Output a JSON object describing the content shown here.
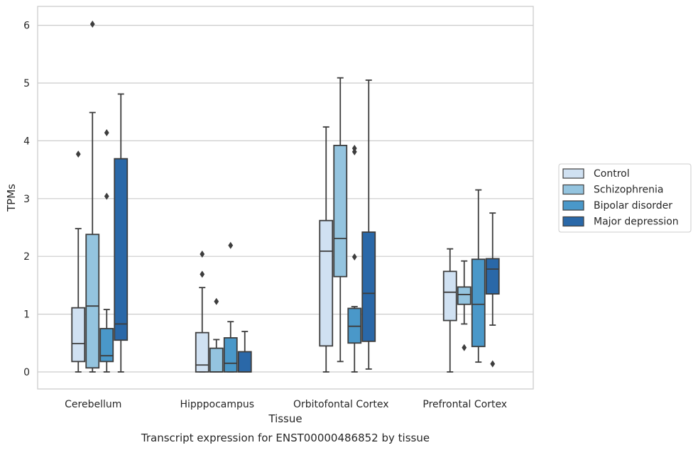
{
  "chart_data": {
    "type": "box",
    "xlabel": "Tissue",
    "ylabel": "TPMs",
    "caption": "Transcript expression for ENST00000486852 by tissue",
    "ylim": [
      -0.3,
      6.35
    ],
    "yticks": [
      0,
      1,
      2,
      3,
      4,
      5,
      6
    ],
    "grid": "horizontal",
    "legend_placement": "right",
    "categories": [
      "Cerebellum",
      "Hipppocampus",
      "Orbitofontal Cortex",
      "Prefrontal Cortex"
    ],
    "series": [
      {
        "name": "Control",
        "color": "#d0e1f2",
        "boxes": [
          {
            "min": 0.0,
            "q1": 0.18,
            "median": 0.49,
            "q3": 1.11,
            "max": 2.48,
            "outliers": [
              3.77
            ]
          },
          {
            "min": 0.0,
            "q1": 0.0,
            "median": 0.12,
            "q3": 0.68,
            "max": 1.46,
            "outliers": [
              1.69,
              2.04
            ]
          },
          {
            "min": 0.0,
            "q1": 0.45,
            "median": 2.09,
            "q3": 2.62,
            "max": 4.24,
            "outliers": []
          },
          {
            "min": 0.0,
            "q1": 0.89,
            "median": 1.38,
            "q3": 1.74,
            "max": 2.13,
            "outliers": []
          }
        ]
      },
      {
        "name": "Schizophrenia",
        "color": "#94c4df",
        "boxes": [
          {
            "min": 0.0,
            "q1": 0.07,
            "median": 1.14,
            "q3": 2.38,
            "max": 4.49,
            "outliers": [
              6.02
            ]
          },
          {
            "min": 0.0,
            "q1": 0.0,
            "median": 0.0,
            "q3": 0.41,
            "max": 0.56,
            "outliers": [
              1.22
            ]
          },
          {
            "min": 0.18,
            "q1": 1.65,
            "median": 2.31,
            "q3": 3.92,
            "max": 5.09,
            "outliers": []
          },
          {
            "min": 0.83,
            "q1": 1.17,
            "median": 1.34,
            "q3": 1.47,
            "max": 1.92,
            "outliers": [
              0.42
            ]
          }
        ]
      },
      {
        "name": "Bipolar disorder",
        "color": "#4a98c9",
        "boxes": [
          {
            "min": 0.0,
            "q1": 0.18,
            "median": 0.28,
            "q3": 0.75,
            "max": 1.08,
            "outliers": [
              3.04,
              4.14
            ]
          },
          {
            "min": 0.0,
            "q1": 0.0,
            "median": 0.15,
            "q3": 0.59,
            "max": 0.87,
            "outliers": [
              2.19
            ]
          },
          {
            "min": 0.0,
            "q1": 0.5,
            "median": 0.79,
            "q3": 1.1,
            "max": 1.13,
            "outliers": [
              1.99,
              3.81,
              3.87
            ]
          },
          {
            "min": 0.17,
            "q1": 0.44,
            "median": 1.17,
            "q3": 1.95,
            "max": 3.15,
            "outliers": []
          }
        ]
      },
      {
        "name": "Major depression",
        "color": "#2a68a8",
        "boxes": [
          {
            "min": 0.0,
            "q1": 0.55,
            "median": 0.83,
            "q3": 3.69,
            "max": 4.81,
            "outliers": []
          },
          {
            "min": 0.0,
            "q1": 0.0,
            "median": 0.0,
            "q3": 0.35,
            "max": 0.7,
            "outliers": []
          },
          {
            "min": 0.05,
            "q1": 0.53,
            "median": 1.36,
            "q3": 2.42,
            "max": 5.05,
            "outliers": []
          },
          {
            "min": 0.81,
            "q1": 1.35,
            "median": 1.78,
            "q3": 1.96,
            "max": 2.75,
            "outliers": [
              0.14
            ]
          }
        ]
      }
    ]
  }
}
